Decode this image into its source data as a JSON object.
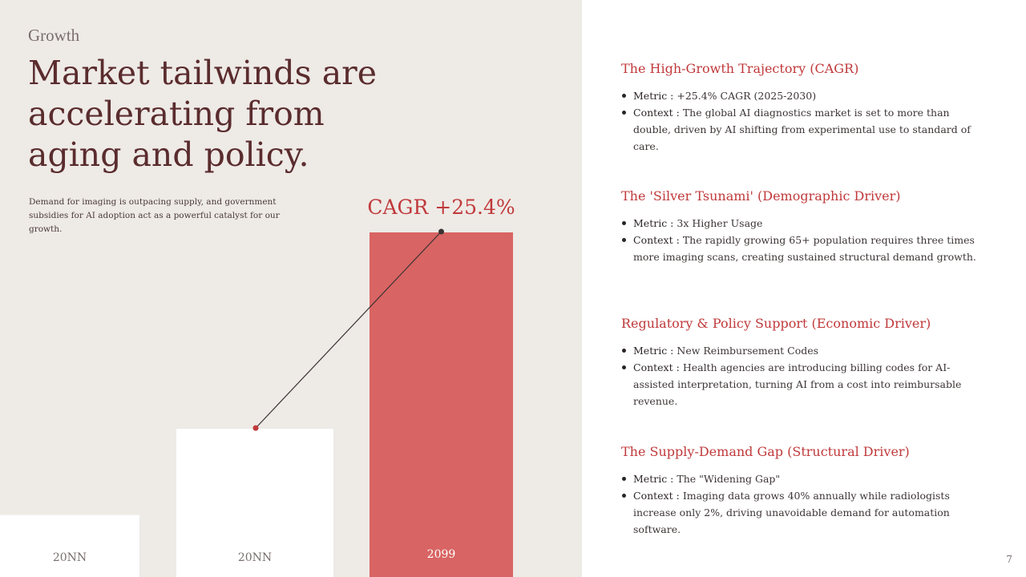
{
  "slide": {
    "section": "Growth",
    "headline": "Market tailwinds are accelerating from aging and policy.",
    "subtext": "Demand for imaging is outpacing supply, and government subsidies for AI adoption act as a powerful catalyst for our growth.",
    "page_number": "7"
  },
  "colors": {
    "left_panel_bg": "#eeeae6",
    "accent_red": "#c0393b",
    "bar_red": "#d86463",
    "bar_white": "#ffffff",
    "headline": "#5a2c2e"
  },
  "chart_data": {
    "type": "bar",
    "title": "",
    "annotation": "CAGR +25.4%",
    "categories": [
      "20NN",
      "20NN",
      "2099"
    ],
    "values": [
      18,
      43,
      100
    ],
    "highlight_index": 2,
    "ylim": [
      0,
      100
    ],
    "xlabel": "",
    "ylabel": "",
    "grid": false,
    "trend_line": {
      "from_index": 1,
      "to_index": 2
    }
  },
  "drivers": [
    {
      "title": "The High-Growth Trajectory (CAGR)",
      "metric_label": "Metric :",
      "metric_value": "+25.4% CAGR (2025-2030)",
      "context_label": "Context :",
      "context_value": "The global AI diagnostics market is set to more than double, driven by AI shifting from experimental use to standard of care."
    },
    {
      "title": "The 'Silver Tsunami' (Demographic Driver)",
      "metric_label": "Metric :",
      "metric_value": "3x Higher Usage",
      "context_label": "Context :",
      "context_value": "The rapidly growing 65+ population requires three times more imaging scans, creating sustained structural demand growth."
    },
    {
      "title": "Regulatory & Policy Support (Economic Driver)",
      "metric_label": "Metric :",
      "metric_value": "New Reimbursement Codes",
      "context_label": "Context :",
      "context_value": "Health agencies are introducing billing codes for AI-assisted interpretation, turning AI from a cost into reimbursable revenue."
    },
    {
      "title": "The Supply-Demand Gap (Structural Driver)",
      "metric_label": "Metric :",
      "metric_value": "The \"Widening Gap\"",
      "context_label": "Context :",
      "context_value": "Imaging data grows 40% annually while radiologists increase only 2%, driving unavoidable demand for automation software."
    }
  ]
}
